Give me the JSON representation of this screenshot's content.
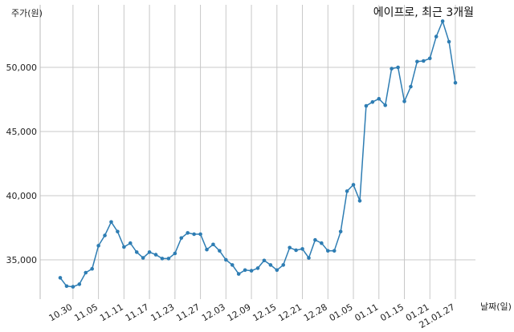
{
  "chart_data": {
    "type": "line",
    "title": "에이프로, 최근 3개월",
    "xlabel": "날짜(일)",
    "ylabel": "주가(원)",
    "ylim": [
      32000,
      55000
    ],
    "yticks": [
      35000,
      40000,
      45000,
      50000
    ],
    "ytick_labels": [
      "35,000",
      "40,000",
      "45,000",
      "50,000"
    ],
    "xtick_labels": [
      "10.30",
      "11.05",
      "11.11",
      "11.17",
      "11.23",
      "11.27",
      "12.03",
      "12.09",
      "12.15",
      "12.21",
      "12.28",
      "01.05",
      "01.11",
      "01.15",
      "01.21",
      "21.01.27"
    ],
    "xtick_index": [
      2,
      6,
      10,
      14,
      18,
      22,
      26,
      30,
      34,
      38,
      42,
      46,
      50,
      54,
      58,
      62
    ],
    "grid": true,
    "line_color": "#2e7db3",
    "series": [
      {
        "values": [
          33600,
          32950,
          32900,
          33100,
          34000,
          34300,
          36100,
          36900,
          37950,
          37200,
          36000,
          36300,
          35600,
          35150,
          35600,
          35400,
          35100,
          35100,
          35500,
          36700,
          37100,
          37000,
          37000,
          35800,
          36200,
          35700,
          35000,
          34600,
          33900,
          34200,
          34150,
          34350,
          34950,
          34600,
          34200,
          34600,
          35950,
          35750,
          35850,
          35150,
          36550,
          36300,
          35700,
          35700,
          37200,
          40350,
          40850,
          39600,
          47000,
          47300,
          47550,
          47050,
          49900,
          50000,
          47350,
          48500,
          50450,
          50500,
          50700,
          52400,
          53600,
          52000,
          48800
        ]
      }
    ]
  }
}
